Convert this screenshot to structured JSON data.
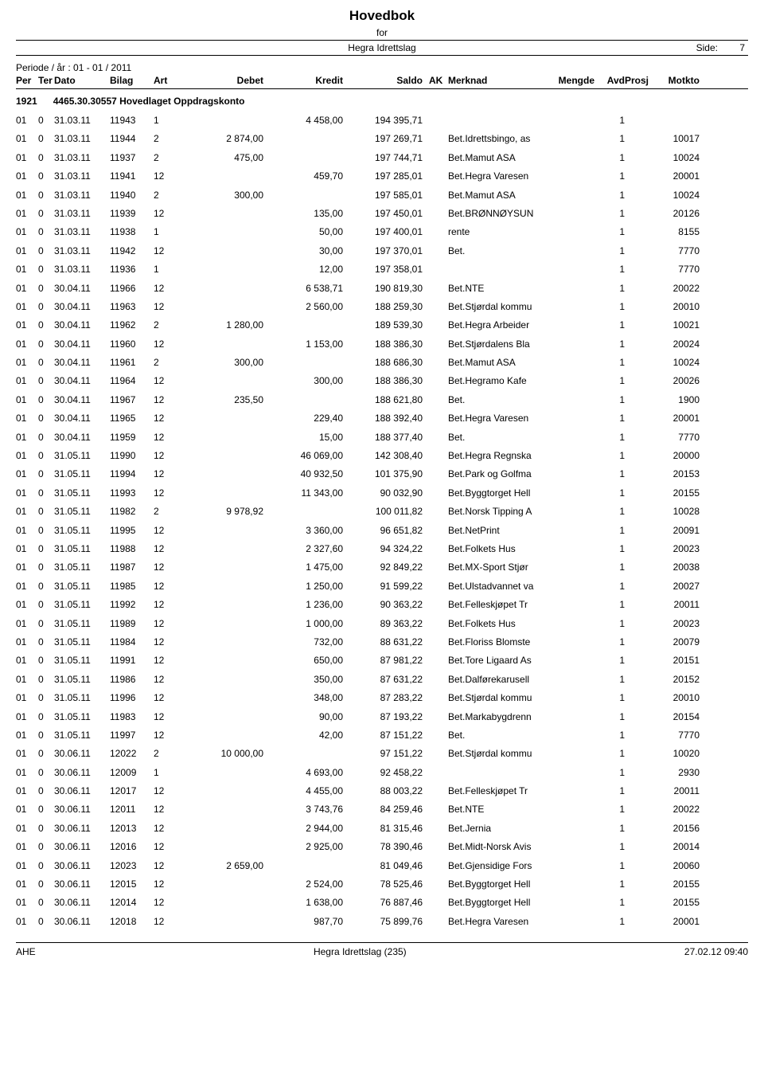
{
  "header": {
    "title": "Hovedbok",
    "for_label": "for",
    "org_name": "Hegra Idrettslag",
    "side_label": "Side:",
    "side_num": "7",
    "period": "Periode / år :  01   -   01  / 2011"
  },
  "columns": {
    "per": "Per",
    "ter": "Ter",
    "dato": "Dato",
    "bilag": "Bilag",
    "art": "Art",
    "debet": "Debet",
    "kredit": "Kredit",
    "saldo": "Saldo",
    "ak": "AK",
    "merknad": "Merknad",
    "mengde": "Mengde",
    "avd": "Avd",
    "prosj": "Prosj",
    "motkto": "Motkto"
  },
  "account": {
    "code": "1921",
    "name": "4465.30.30557 Hovedlaget Oppdragskonto"
  },
  "rows": [
    {
      "per": "01",
      "ter": "0",
      "dato": "31.03.11",
      "bilag": "11943",
      "art": "1",
      "debet": "",
      "kredit": "4 458,00",
      "saldo": "194 395,71",
      "merk": "",
      "avd": "1",
      "motkto": ""
    },
    {
      "per": "01",
      "ter": "0",
      "dato": "31.03.11",
      "bilag": "11944",
      "art": "2",
      "debet": "2 874,00",
      "kredit": "",
      "saldo": "197 269,71",
      "merk": "Bet.Idrettsbingo, as",
      "avd": "1",
      "motkto": "10017"
    },
    {
      "per": "01",
      "ter": "0",
      "dato": "31.03.11",
      "bilag": "11937",
      "art": "2",
      "debet": "475,00",
      "kredit": "",
      "saldo": "197 744,71",
      "merk": "Bet.Mamut ASA",
      "avd": "1",
      "motkto": "10024"
    },
    {
      "per": "01",
      "ter": "0",
      "dato": "31.03.11",
      "bilag": "11941",
      "art": "12",
      "debet": "",
      "kredit": "459,70",
      "saldo": "197 285,01",
      "merk": "Bet.Hegra Varesen",
      "avd": "1",
      "motkto": "20001"
    },
    {
      "per": "01",
      "ter": "0",
      "dato": "31.03.11",
      "bilag": "11940",
      "art": "2",
      "debet": "300,00",
      "kredit": "",
      "saldo": "197 585,01",
      "merk": "Bet.Mamut ASA",
      "avd": "1",
      "motkto": "10024"
    },
    {
      "per": "01",
      "ter": "0",
      "dato": "31.03.11",
      "bilag": "11939",
      "art": "12",
      "debet": "",
      "kredit": "135,00",
      "saldo": "197 450,01",
      "merk": "Bet.BRØNNØYSUN",
      "avd": "1",
      "motkto": "20126"
    },
    {
      "per": "01",
      "ter": "0",
      "dato": "31.03.11",
      "bilag": "11938",
      "art": "1",
      "debet": "",
      "kredit": "50,00",
      "saldo": "197 400,01",
      "merk": "rente",
      "avd": "1",
      "motkto": "8155"
    },
    {
      "per": "01",
      "ter": "0",
      "dato": "31.03.11",
      "bilag": "11942",
      "art": "12",
      "debet": "",
      "kredit": "30,00",
      "saldo": "197 370,01",
      "merk": "Bet.",
      "avd": "1",
      "motkto": "7770"
    },
    {
      "per": "01",
      "ter": "0",
      "dato": "31.03.11",
      "bilag": "11936",
      "art": "1",
      "debet": "",
      "kredit": "12,00",
      "saldo": "197 358,01",
      "merk": "",
      "avd": "1",
      "motkto": "7770"
    },
    {
      "per": "01",
      "ter": "0",
      "dato": "30.04.11",
      "bilag": "11966",
      "art": "12",
      "debet": "",
      "kredit": "6 538,71",
      "saldo": "190 819,30",
      "merk": "Bet.NTE",
      "avd": "1",
      "motkto": "20022"
    },
    {
      "per": "01",
      "ter": "0",
      "dato": "30.04.11",
      "bilag": "11963",
      "art": "12",
      "debet": "",
      "kredit": "2 560,00",
      "saldo": "188 259,30",
      "merk": "Bet.Stjørdal kommu",
      "avd": "1",
      "motkto": "20010"
    },
    {
      "per": "01",
      "ter": "0",
      "dato": "30.04.11",
      "bilag": "11962",
      "art": "2",
      "debet": "1 280,00",
      "kredit": "",
      "saldo": "189 539,30",
      "merk": "Bet.Hegra Arbeider",
      "avd": "1",
      "motkto": "10021"
    },
    {
      "per": "01",
      "ter": "0",
      "dato": "30.04.11",
      "bilag": "11960",
      "art": "12",
      "debet": "",
      "kredit": "1 153,00",
      "saldo": "188 386,30",
      "merk": "Bet.Stjørdalens Bla",
      "avd": "1",
      "motkto": "20024"
    },
    {
      "per": "01",
      "ter": "0",
      "dato": "30.04.11",
      "bilag": "11961",
      "art": "2",
      "debet": "300,00",
      "kredit": "",
      "saldo": "188 686,30",
      "merk": "Bet.Mamut ASA",
      "avd": "1",
      "motkto": "10024"
    },
    {
      "per": "01",
      "ter": "0",
      "dato": "30.04.11",
      "bilag": "11964",
      "art": "12",
      "debet": "",
      "kredit": "300,00",
      "saldo": "188 386,30",
      "merk": "Bet.Hegramo Kafe",
      "avd": "1",
      "motkto": "20026"
    },
    {
      "per": "01",
      "ter": "0",
      "dato": "30.04.11",
      "bilag": "11967",
      "art": "12",
      "debet": "235,50",
      "kredit": "",
      "saldo": "188 621,80",
      "merk": "Bet.",
      "avd": "1",
      "motkto": "1900"
    },
    {
      "per": "01",
      "ter": "0",
      "dato": "30.04.11",
      "bilag": "11965",
      "art": "12",
      "debet": "",
      "kredit": "229,40",
      "saldo": "188 392,40",
      "merk": "Bet.Hegra Varesen",
      "avd": "1",
      "motkto": "20001"
    },
    {
      "per": "01",
      "ter": "0",
      "dato": "30.04.11",
      "bilag": "11959",
      "art": "12",
      "debet": "",
      "kredit": "15,00",
      "saldo": "188 377,40",
      "merk": "Bet.",
      "avd": "1",
      "motkto": "7770"
    },
    {
      "per": "01",
      "ter": "0",
      "dato": "31.05.11",
      "bilag": "11990",
      "art": "12",
      "debet": "",
      "kredit": "46 069,00",
      "saldo": "142 308,40",
      "merk": "Bet.Hegra Regnska",
      "avd": "1",
      "motkto": "20000"
    },
    {
      "per": "01",
      "ter": "0",
      "dato": "31.05.11",
      "bilag": "11994",
      "art": "12",
      "debet": "",
      "kredit": "40 932,50",
      "saldo": "101 375,90",
      "merk": "Bet.Park og Golfma",
      "avd": "1",
      "motkto": "20153"
    },
    {
      "per": "01",
      "ter": "0",
      "dato": "31.05.11",
      "bilag": "11993",
      "art": "12",
      "debet": "",
      "kredit": "11 343,00",
      "saldo": "90 032,90",
      "merk": "Bet.Byggtorget Hell",
      "avd": "1",
      "motkto": "20155"
    },
    {
      "per": "01",
      "ter": "0",
      "dato": "31.05.11",
      "bilag": "11982",
      "art": "2",
      "debet": "9 978,92",
      "kredit": "",
      "saldo": "100 011,82",
      "merk": "Bet.Norsk Tipping A",
      "avd": "1",
      "motkto": "10028"
    },
    {
      "per": "01",
      "ter": "0",
      "dato": "31.05.11",
      "bilag": "11995",
      "art": "12",
      "debet": "",
      "kredit": "3 360,00",
      "saldo": "96 651,82",
      "merk": "Bet.NetPrint",
      "avd": "1",
      "motkto": "20091"
    },
    {
      "per": "01",
      "ter": "0",
      "dato": "31.05.11",
      "bilag": "11988",
      "art": "12",
      "debet": "",
      "kredit": "2 327,60",
      "saldo": "94 324,22",
      "merk": "Bet.Folkets Hus",
      "avd": "1",
      "motkto": "20023"
    },
    {
      "per": "01",
      "ter": "0",
      "dato": "31.05.11",
      "bilag": "11987",
      "art": "12",
      "debet": "",
      "kredit": "1 475,00",
      "saldo": "92 849,22",
      "merk": "Bet.MX-Sport Stjør",
      "avd": "1",
      "motkto": "20038"
    },
    {
      "per": "01",
      "ter": "0",
      "dato": "31.05.11",
      "bilag": "11985",
      "art": "12",
      "debet": "",
      "kredit": "1 250,00",
      "saldo": "91 599,22",
      "merk": "Bet.Ulstadvannet va",
      "avd": "1",
      "motkto": "20027"
    },
    {
      "per": "01",
      "ter": "0",
      "dato": "31.05.11",
      "bilag": "11992",
      "art": "12",
      "debet": "",
      "kredit": "1 236,00",
      "saldo": "90 363,22",
      "merk": "Bet.Felleskjøpet Tr",
      "avd": "1",
      "motkto": "20011"
    },
    {
      "per": "01",
      "ter": "0",
      "dato": "31.05.11",
      "bilag": "11989",
      "art": "12",
      "debet": "",
      "kredit": "1 000,00",
      "saldo": "89 363,22",
      "merk": "Bet.Folkets Hus",
      "avd": "1",
      "motkto": "20023"
    },
    {
      "per": "01",
      "ter": "0",
      "dato": "31.05.11",
      "bilag": "11984",
      "art": "12",
      "debet": "",
      "kredit": "732,00",
      "saldo": "88 631,22",
      "merk": "Bet.Floriss Blomste",
      "avd": "1",
      "motkto": "20079"
    },
    {
      "per": "01",
      "ter": "0",
      "dato": "31.05.11",
      "bilag": "11991",
      "art": "12",
      "debet": "",
      "kredit": "650,00",
      "saldo": "87 981,22",
      "merk": "Bet.Tore Ligaard As",
      "avd": "1",
      "motkto": "20151"
    },
    {
      "per": "01",
      "ter": "0",
      "dato": "31.05.11",
      "bilag": "11986",
      "art": "12",
      "debet": "",
      "kredit": "350,00",
      "saldo": "87 631,22",
      "merk": "Bet.Dalførekarusell",
      "avd": "1",
      "motkto": "20152"
    },
    {
      "per": "01",
      "ter": "0",
      "dato": "31.05.11",
      "bilag": "11996",
      "art": "12",
      "debet": "",
      "kredit": "348,00",
      "saldo": "87 283,22",
      "merk": "Bet.Stjørdal kommu",
      "avd": "1",
      "motkto": "20010"
    },
    {
      "per": "01",
      "ter": "0",
      "dato": "31.05.11",
      "bilag": "11983",
      "art": "12",
      "debet": "",
      "kredit": "90,00",
      "saldo": "87 193,22",
      "merk": "Bet.Markabygdrenn",
      "avd": "1",
      "motkto": "20154"
    },
    {
      "per": "01",
      "ter": "0",
      "dato": "31.05.11",
      "bilag": "11997",
      "art": "12",
      "debet": "",
      "kredit": "42,00",
      "saldo": "87 151,22",
      "merk": "Bet.",
      "avd": "1",
      "motkto": "7770"
    },
    {
      "per": "01",
      "ter": "0",
      "dato": "30.06.11",
      "bilag": "12022",
      "art": "2",
      "debet": "10 000,00",
      "kredit": "",
      "saldo": "97 151,22",
      "merk": "Bet.Stjørdal kommu",
      "avd": "1",
      "motkto": "10020"
    },
    {
      "per": "01",
      "ter": "0",
      "dato": "30.06.11",
      "bilag": "12009",
      "art": "1",
      "debet": "",
      "kredit": "4 693,00",
      "saldo": "92 458,22",
      "merk": "",
      "avd": "1",
      "motkto": "2930"
    },
    {
      "per": "01",
      "ter": "0",
      "dato": "30.06.11",
      "bilag": "12017",
      "art": "12",
      "debet": "",
      "kredit": "4 455,00",
      "saldo": "88 003,22",
      "merk": "Bet.Felleskjøpet Tr",
      "avd": "1",
      "motkto": "20011"
    },
    {
      "per": "01",
      "ter": "0",
      "dato": "30.06.11",
      "bilag": "12011",
      "art": "12",
      "debet": "",
      "kredit": "3 743,76",
      "saldo": "84 259,46",
      "merk": "Bet.NTE",
      "avd": "1",
      "motkto": "20022"
    },
    {
      "per": "01",
      "ter": "0",
      "dato": "30.06.11",
      "bilag": "12013",
      "art": "12",
      "debet": "",
      "kredit": "2 944,00",
      "saldo": "81 315,46",
      "merk": "Bet.Jernia",
      "avd": "1",
      "motkto": "20156"
    },
    {
      "per": "01",
      "ter": "0",
      "dato": "30.06.11",
      "bilag": "12016",
      "art": "12",
      "debet": "",
      "kredit": "2 925,00",
      "saldo": "78 390,46",
      "merk": "Bet.Midt-Norsk Avis",
      "avd": "1",
      "motkto": "20014"
    },
    {
      "per": "01",
      "ter": "0",
      "dato": "30.06.11",
      "bilag": "12023",
      "art": "12",
      "debet": "2 659,00",
      "kredit": "",
      "saldo": "81 049,46",
      "merk": "Bet.Gjensidige Fors",
      "avd": "1",
      "motkto": "20060"
    },
    {
      "per": "01",
      "ter": "0",
      "dato": "30.06.11",
      "bilag": "12015",
      "art": "12",
      "debet": "",
      "kredit": "2 524,00",
      "saldo": "78 525,46",
      "merk": "Bet.Byggtorget Hell",
      "avd": "1",
      "motkto": "20155"
    },
    {
      "per": "01",
      "ter": "0",
      "dato": "30.06.11",
      "bilag": "12014",
      "art": "12",
      "debet": "",
      "kredit": "1 638,00",
      "saldo": "76 887,46",
      "merk": "Bet.Byggtorget Hell",
      "avd": "1",
      "motkto": "20155"
    },
    {
      "per": "01",
      "ter": "0",
      "dato": "30.06.11",
      "bilag": "12018",
      "art": "12",
      "debet": "",
      "kredit": "987,70",
      "saldo": "75 899,76",
      "merk": "Bet.Hegra Varesen",
      "avd": "1",
      "motkto": "20001"
    }
  ],
  "footer": {
    "left": "AHE",
    "center": "Hegra Idrettslag (235)",
    "right": "27.02.12  09:40"
  }
}
